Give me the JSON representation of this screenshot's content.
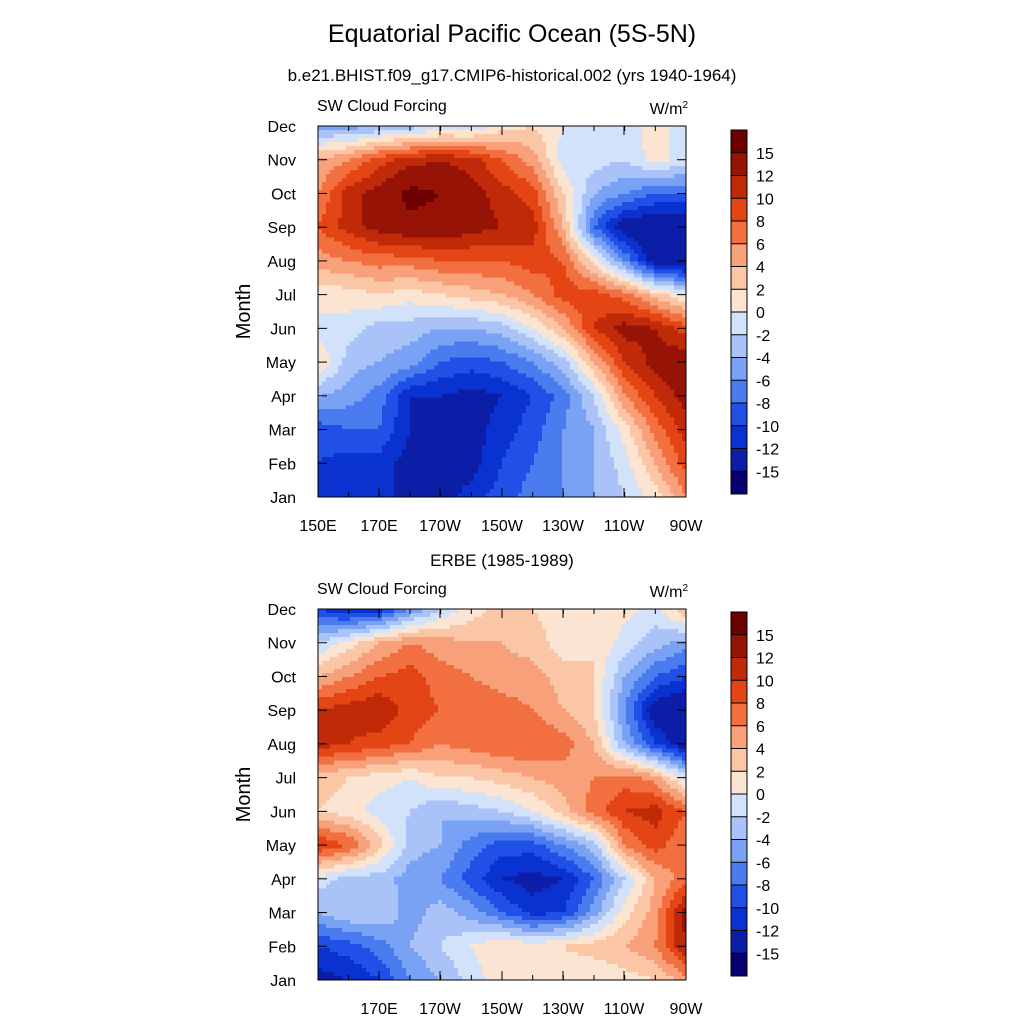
{
  "title": "Equatorial Pacific Ocean (5S-5N)",
  "subtitle": "b.e21.BHIST.f09_g17.CMIP6-historical.002 (yrs 1940-1964)",
  "colors": {
    "levels": [
      "#08006e",
      "#0c1ea7",
      "#0a32d0",
      "#2150e6",
      "#4a7cef",
      "#7aa2f4",
      "#a9c3f8",
      "#d2e2fb",
      "#fbe4d2",
      "#fbc6a6",
      "#f7a07a",
      "#f26f3f",
      "#e34514",
      "#c02a08",
      "#971306",
      "#6d0000"
    ]
  },
  "month_labels": [
    "Jan",
    "Feb",
    "Mar",
    "Apr",
    "May",
    "Jun",
    "Jul",
    "Aug",
    "Sep",
    "Oct",
    "Nov",
    "Dec"
  ],
  "colorbar_labels": [
    "15",
    "12",
    "10",
    "8",
    "6",
    "4",
    "2",
    "0",
    "-2",
    "-4",
    "-6",
    "-8",
    "-10",
    "-12",
    "-15"
  ],
  "chart_data": [
    {
      "type": "heatmap",
      "title": "",
      "panel_label": "SW Cloud Forcing",
      "units_base": "W/m",
      "units_exp": "2",
      "ylabel": "Month",
      "xlabel": "",
      "x_tick_labels": [
        "150E",
        "170E",
        "170W",
        "150W",
        "130W",
        "110W",
        "90W"
      ],
      "x_lon": [
        "150E",
        "160E",
        "170E",
        "180",
        "170W",
        "160W",
        "150W",
        "140W",
        "130W",
        "120W",
        "110W",
        "100W",
        "90W"
      ],
      "y": [
        "Jan",
        "Feb",
        "Mar",
        "Apr",
        "May",
        "Jun",
        "Jul",
        "Aug",
        "Sep",
        "Oct",
        "Nov",
        "Dec"
      ],
      "z": [
        [
          -11,
          -12,
          -11,
          -13,
          -13,
          -11,
          -9,
          -7,
          -6,
          -4,
          -2,
          1,
          6
        ],
        [
          -10,
          -11,
          -11,
          -13,
          -14,
          -13,
          -10,
          -8,
          -6,
          -4,
          -1,
          4,
          9
        ],
        [
          -9,
          -8,
          -8,
          -12,
          -13,
          -13,
          -11,
          -9,
          -6,
          -4,
          1,
          7,
          11
        ],
        [
          -4,
          -5,
          -7,
          -12,
          -12,
          -13,
          -12,
          -10,
          -7,
          -2,
          6,
          10,
          13
        ],
        [
          2,
          -3,
          -4,
          -5,
          -8,
          -9,
          -8,
          -6,
          -3,
          4,
          10,
          13,
          14
        ],
        [
          -1,
          -1,
          -3,
          -3,
          -4,
          -4,
          -3,
          0,
          4,
          10,
          13,
          12,
          9
        ],
        [
          1,
          1,
          2,
          1,
          2,
          3,
          4,
          6,
          9,
          9,
          7,
          3,
          0
        ],
        [
          5,
          6,
          7,
          7,
          8,
          8,
          8,
          9,
          8,
          1,
          -6,
          -14,
          -15
        ],
        [
          8,
          11,
          13,
          14,
          14,
          13,
          12,
          11,
          4,
          -8,
          -14,
          -15,
          -15
        ],
        [
          6,
          11,
          13,
          16,
          15,
          13,
          11,
          9,
          2,
          -4,
          -6,
          -8,
          -8
        ],
        [
          4,
          6,
          9,
          11,
          12,
          11,
          8,
          5,
          -1,
          -1,
          -2,
          1,
          -1
        ],
        [
          -5,
          -5,
          -4,
          -3,
          -2,
          -2,
          1,
          2,
          0,
          -2,
          -1,
          1,
          -1
        ]
      ],
      "levels": [
        -15,
        -12,
        -10,
        -8,
        -6,
        -4,
        -2,
        0,
        2,
        4,
        6,
        8,
        10,
        12,
        15
      ]
    },
    {
      "type": "heatmap",
      "title": "ERBE (1985-1989)",
      "panel_label": "SW Cloud Forcing",
      "units_base": "W/m",
      "units_exp": "2",
      "ylabel": "Month",
      "xlabel": "",
      "x_tick_labels": [
        "170E",
        "170W",
        "150W",
        "130W",
        "110W",
        "90W"
      ],
      "x_lon": [
        "150E",
        "160E",
        "170E",
        "180",
        "170W",
        "160W",
        "150W",
        "140W",
        "130W",
        "120W",
        "110W",
        "100W",
        "90W"
      ],
      "y": [
        "Jan",
        "Feb",
        "Mar",
        "Apr",
        "May",
        "Jun",
        "Jul",
        "Aug",
        "Sep",
        "Oct",
        "Nov",
        "Dec"
      ],
      "z": [
        [
          -13,
          -12,
          -10,
          -6,
          -4,
          -1,
          1,
          0,
          1,
          0,
          1,
          2,
          5
        ],
        [
          -10,
          -9,
          -7,
          -4,
          -2,
          0,
          2,
          1,
          2,
          3,
          4,
          6,
          12
        ],
        [
          -4,
          -2,
          -2,
          -5,
          -3,
          -5,
          -8,
          -11,
          -10,
          -5,
          1,
          5,
          13
        ],
        [
          -1,
          -3,
          -3,
          -5,
          -6,
          -9,
          -12,
          -13,
          -12,
          -8,
          -2,
          4,
          7
        ],
        [
          10,
          8,
          3,
          -3,
          -4,
          -7,
          -9,
          -9,
          -6,
          -3,
          6,
          9,
          6
        ],
        [
          2,
          1,
          -1,
          -2,
          -4,
          -3,
          -2,
          0,
          3,
          7,
          10,
          11,
          8
        ],
        [
          3,
          2,
          1,
          0,
          2,
          2,
          3,
          4,
          5,
          6,
          7,
          5,
          -1
        ],
        [
          11,
          10,
          9,
          8,
          6,
          7,
          8,
          8,
          7,
          4,
          -4,
          -10,
          -14
        ],
        [
          10,
          11,
          12,
          9,
          8,
          8,
          7,
          6,
          4,
          2,
          -6,
          -14,
          -15
        ],
        [
          4,
          6,
          8,
          9,
          7,
          6,
          5,
          5,
          3,
          2,
          -4,
          -8,
          -10
        ],
        [
          -2,
          1,
          4,
          6,
          5,
          4,
          4,
          3,
          1,
          2,
          -1,
          -3,
          -5
        ],
        [
          -10,
          -12,
          -11,
          -6,
          -2,
          1,
          3,
          2,
          1,
          2,
          1,
          -1,
          4
        ]
      ],
      "levels": [
        -15,
        -12,
        -10,
        -8,
        -6,
        -4,
        -2,
        0,
        2,
        4,
        6,
        8,
        10,
        12,
        15
      ]
    }
  ]
}
